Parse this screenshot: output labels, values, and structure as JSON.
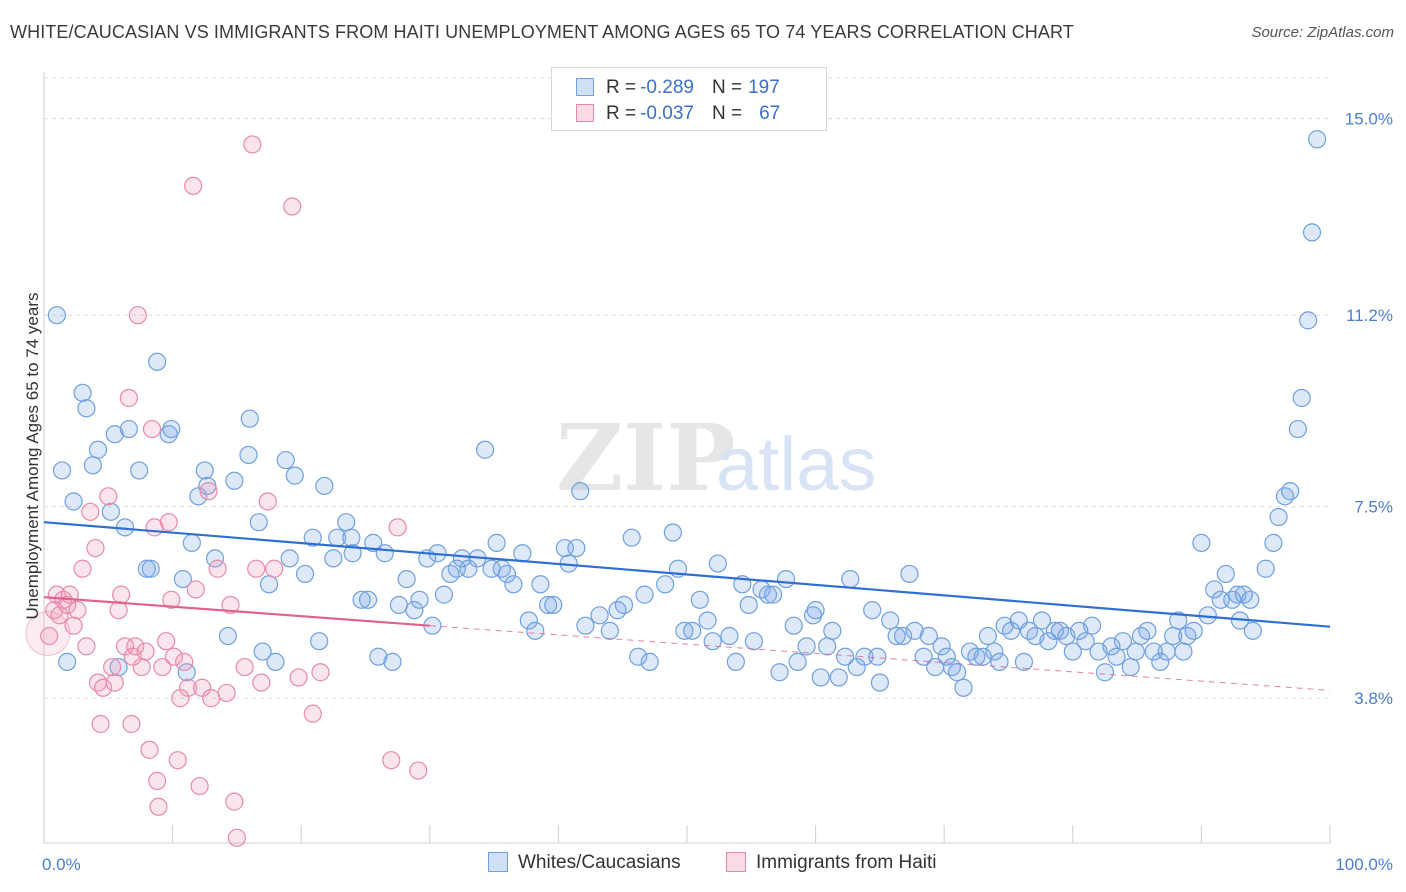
{
  "title": "WHITE/CAUCASIAN VS IMMIGRANTS FROM HAITI UNEMPLOYMENT AMONG AGES 65 TO 74 YEARS CORRELATION CHART",
  "source": "Source: ZipAtlas.com",
  "watermark": {
    "zip": "ZIP",
    "atlas": "atlas"
  },
  "legend": {
    "r_label": "R =",
    "n_label": "N =",
    "series": [
      {
        "r": "-0.289",
        "n": "197"
      },
      {
        "r": "-0.037",
        "n": "67"
      }
    ]
  },
  "bottom_legend": [
    "Whites/Caucasians",
    "Immigrants from Haiti"
  ],
  "chart_data": {
    "type": "scatter",
    "ylabel": "Unemployment Among Ages 65 to 74 years",
    "xlim": [
      0,
      100
    ],
    "ylim": [
      1.0,
      15.9
    ],
    "x_ticks": [
      {
        "v": 0,
        "label": "0.0%"
      },
      {
        "v": 100,
        "label": "100.0%"
      }
    ],
    "y_ticks": [
      {
        "v": 3.8,
        "label": "3.8%"
      },
      {
        "v": 7.5,
        "label": "7.5%"
      },
      {
        "v": 11.2,
        "label": "11.2%"
      },
      {
        "v": 15.0,
        "label": "15.0%"
      }
    ],
    "series": [
      {
        "name": "Whites/Caucasians",
        "color": "#6fa0e0",
        "fill": "rgba(120,165,230,0.25)",
        "trend_color": "#2f6fd1",
        "trend": {
          "x": [
            0,
            100
          ],
          "y": [
            7.2,
            5.18
          ]
        },
        "points": [
          [
            1.0,
            11.2
          ],
          [
            1.4,
            8.2
          ],
          [
            1.8,
            4.5
          ],
          [
            2.3,
            7.6
          ],
          [
            3.0,
            9.7
          ],
          [
            3.3,
            9.4
          ],
          [
            3.8,
            8.3
          ],
          [
            4.2,
            8.6
          ],
          [
            5.2,
            7.4
          ],
          [
            5.5,
            8.9
          ],
          [
            5.8,
            4.4
          ],
          [
            6.3,
            7.1
          ],
          [
            6.6,
            9.0
          ],
          [
            7.4,
            8.2
          ],
          [
            8.0,
            6.3
          ],
          [
            8.3,
            6.3
          ],
          [
            8.8,
            10.3
          ],
          [
            9.7,
            8.9
          ],
          [
            9.9,
            9.0
          ],
          [
            10.8,
            6.1
          ],
          [
            11.1,
            4.3
          ],
          [
            11.5,
            6.8
          ],
          [
            12.0,
            7.7
          ],
          [
            12.5,
            8.2
          ],
          [
            12.7,
            7.9
          ],
          [
            13.3,
            6.5
          ],
          [
            14.3,
            5.0
          ],
          [
            14.8,
            8.0
          ],
          [
            15.9,
            8.5
          ],
          [
            16.0,
            9.2
          ],
          [
            16.7,
            7.2
          ],
          [
            17.0,
            4.7
          ],
          [
            17.5,
            6.0
          ],
          [
            18.0,
            4.5
          ],
          [
            18.8,
            8.4
          ],
          [
            19.1,
            6.5
          ],
          [
            19.5,
            8.1
          ],
          [
            20.3,
            6.2
          ],
          [
            20.9,
            6.9
          ],
          [
            21.4,
            4.9
          ],
          [
            21.8,
            7.9
          ],
          [
            22.5,
            6.5
          ],
          [
            22.8,
            6.9
          ],
          [
            23.5,
            7.2
          ],
          [
            23.9,
            6.9
          ],
          [
            24.0,
            6.6
          ],
          [
            24.7,
            5.7
          ],
          [
            25.2,
            5.7
          ],
          [
            25.6,
            6.8
          ],
          [
            26.0,
            4.6
          ],
          [
            26.5,
            6.6
          ],
          [
            27.1,
            4.5
          ],
          [
            27.6,
            5.6
          ],
          [
            28.2,
            6.1
          ],
          [
            28.8,
            5.5
          ],
          [
            29.2,
            5.7
          ],
          [
            29.8,
            6.5
          ],
          [
            30.2,
            5.2
          ],
          [
            30.6,
            6.6
          ],
          [
            31.1,
            5.8
          ],
          [
            31.6,
            6.2
          ],
          [
            32.1,
            6.3
          ],
          [
            32.5,
            6.5
          ],
          [
            33.0,
            6.3
          ],
          [
            33.7,
            6.5
          ],
          [
            34.3,
            8.6
          ],
          [
            34.8,
            6.3
          ],
          [
            35.2,
            6.8
          ],
          [
            35.6,
            6.3
          ],
          [
            36.0,
            6.2
          ],
          [
            36.5,
            6.0
          ],
          [
            37.2,
            6.6
          ],
          [
            37.7,
            5.3
          ],
          [
            38.2,
            5.1
          ],
          [
            38.6,
            6.0
          ],
          [
            39.2,
            5.6
          ],
          [
            39.6,
            5.6
          ],
          [
            40.5,
            6.7
          ],
          [
            40.8,
            6.4
          ],
          [
            41.4,
            6.7
          ],
          [
            41.7,
            7.8
          ],
          [
            42.1,
            5.2
          ],
          [
            43.2,
            5.4
          ],
          [
            44.0,
            5.1
          ],
          [
            44.6,
            5.5
          ],
          [
            45.1,
            5.6
          ],
          [
            45.7,
            6.9
          ],
          [
            46.2,
            4.6
          ],
          [
            46.7,
            5.8
          ],
          [
            47.1,
            4.5
          ],
          [
            48.3,
            6.0
          ],
          [
            48.9,
            7.0
          ],
          [
            49.3,
            6.3
          ],
          [
            49.8,
            5.1
          ],
          [
            50.4,
            5.1
          ],
          [
            51.0,
            5.7
          ],
          [
            51.6,
            5.3
          ],
          [
            52.0,
            4.9
          ],
          [
            52.4,
            6.4
          ],
          [
            53.3,
            5.0
          ],
          [
            53.8,
            4.5
          ],
          [
            54.3,
            6.0
          ],
          [
            54.8,
            5.6
          ],
          [
            55.2,
            4.9
          ],
          [
            55.8,
            5.9
          ],
          [
            56.3,
            5.8
          ],
          [
            56.7,
            5.8
          ],
          [
            57.2,
            4.3
          ],
          [
            57.7,
            6.1
          ],
          [
            58.3,
            5.2
          ],
          [
            58.6,
            4.5
          ],
          [
            59.3,
            4.8
          ],
          [
            59.8,
            5.4
          ],
          [
            60.4,
            4.2
          ],
          [
            60.9,
            4.8
          ],
          [
            61.3,
            5.1
          ],
          [
            61.8,
            4.2
          ],
          [
            62.3,
            4.6
          ],
          [
            62.7,
            6.1
          ],
          [
            63.2,
            4.4
          ],
          [
            63.8,
            4.6
          ],
          [
            64.4,
            5.5
          ],
          [
            65.0,
            4.1
          ],
          [
            65.8,
            5.3
          ],
          [
            66.3,
            5.0
          ],
          [
            66.8,
            5.0
          ],
          [
            67.3,
            6.2
          ],
          [
            67.7,
            5.1
          ],
          [
            68.4,
            4.6
          ],
          [
            68.8,
            5.0
          ],
          [
            69.3,
            4.4
          ],
          [
            69.8,
            4.8
          ],
          [
            70.2,
            4.6
          ],
          [
            70.6,
            4.4
          ],
          [
            71.0,
            4.3
          ],
          [
            71.5,
            4.0
          ],
          [
            72.0,
            4.7
          ],
          [
            72.5,
            4.6
          ],
          [
            73.0,
            4.6
          ],
          [
            73.4,
            5.0
          ],
          [
            73.9,
            4.7
          ],
          [
            74.3,
            4.5
          ],
          [
            74.7,
            5.2
          ],
          [
            75.2,
            5.1
          ],
          [
            75.8,
            5.3
          ],
          [
            76.2,
            4.5
          ],
          [
            76.6,
            5.1
          ],
          [
            77.1,
            5.0
          ],
          [
            77.6,
            5.3
          ],
          [
            78.1,
            4.9
          ],
          [
            78.6,
            5.1
          ],
          [
            79.0,
            5.1
          ],
          [
            79.5,
            5.0
          ],
          [
            80.0,
            4.7
          ],
          [
            80.5,
            5.1
          ],
          [
            81.0,
            4.9
          ],
          [
            81.5,
            5.2
          ],
          [
            82.0,
            4.7
          ],
          [
            82.5,
            4.3
          ],
          [
            83.0,
            4.8
          ],
          [
            83.4,
            4.6
          ],
          [
            83.9,
            4.9
          ],
          [
            84.5,
            4.4
          ],
          [
            84.9,
            4.7
          ],
          [
            85.3,
            5.0
          ],
          [
            85.8,
            5.1
          ],
          [
            86.3,
            4.7
          ],
          [
            86.8,
            4.5
          ],
          [
            87.3,
            4.7
          ],
          [
            87.8,
            5.0
          ],
          [
            88.2,
            5.3
          ],
          [
            88.6,
            4.7
          ],
          [
            88.9,
            5.0
          ],
          [
            89.4,
            5.1
          ],
          [
            90.0,
            6.8
          ],
          [
            90.5,
            5.4
          ],
          [
            91.0,
            5.9
          ],
          [
            91.5,
            5.7
          ],
          [
            91.9,
            6.2
          ],
          [
            92.4,
            5.7
          ],
          [
            92.8,
            5.8
          ],
          [
            93.3,
            5.8
          ],
          [
            93.8,
            5.7
          ],
          [
            94.0,
            5.1
          ],
          [
            95.0,
            6.3
          ],
          [
            95.6,
            6.8
          ],
          [
            96.0,
            7.3
          ],
          [
            96.5,
            7.7
          ],
          [
            96.9,
            7.8
          ],
          [
            97.5,
            9.0
          ],
          [
            97.8,
            9.6
          ],
          [
            98.3,
            11.1
          ],
          [
            98.6,
            12.8
          ],
          [
            99.0,
            14.6
          ],
          [
            93.0,
            5.3
          ],
          [
            60.0,
            5.5
          ],
          [
            64.8,
            4.6
          ]
        ]
      },
      {
        "name": "Immigrants from Haiti",
        "color": "#e88aa8",
        "fill": "rgba(240,150,180,0.25)",
        "trend_color": "#e0628f",
        "trend": {
          "x": [
            0,
            30
          ],
          "y": [
            5.75,
            5.2
          ]
        },
        "trend_dashed": {
          "x": [
            30,
            100
          ],
          "y": [
            5.2,
            3.95
          ]
        },
        "points": [
          [
            0.4,
            5.0
          ],
          [
            0.8,
            5.5
          ],
          [
            1.0,
            5.8
          ],
          [
            1.2,
            5.4
          ],
          [
            1.5,
            5.7
          ],
          [
            1.8,
            5.6
          ],
          [
            2.0,
            5.8
          ],
          [
            2.3,
            5.2
          ],
          [
            2.6,
            5.5
          ],
          [
            3.0,
            6.3
          ],
          [
            3.3,
            4.8
          ],
          [
            3.6,
            7.4
          ],
          [
            4.0,
            6.7
          ],
          [
            4.2,
            4.1
          ],
          [
            4.4,
            3.3
          ],
          [
            4.6,
            4.0
          ],
          [
            5.0,
            7.7
          ],
          [
            5.3,
            4.4
          ],
          [
            5.5,
            4.1
          ],
          [
            5.8,
            5.5
          ],
          [
            6.0,
            5.8
          ],
          [
            6.3,
            4.8
          ],
          [
            6.6,
            9.6
          ],
          [
            6.8,
            3.3
          ],
          [
            6.9,
            4.6
          ],
          [
            7.1,
            4.8
          ],
          [
            7.3,
            11.2
          ],
          [
            7.6,
            4.4
          ],
          [
            7.9,
            4.7
          ],
          [
            8.2,
            2.8
          ],
          [
            8.4,
            9.0
          ],
          [
            8.6,
            7.1
          ],
          [
            8.8,
            2.2
          ],
          [
            8.9,
            1.7
          ],
          [
            9.2,
            4.4
          ],
          [
            9.5,
            4.9
          ],
          [
            9.7,
            7.2
          ],
          [
            9.9,
            5.7
          ],
          [
            10.1,
            4.6
          ],
          [
            10.4,
            2.6
          ],
          [
            10.6,
            3.8
          ],
          [
            10.9,
            4.5
          ],
          [
            11.2,
            4.0
          ],
          [
            11.6,
            13.7
          ],
          [
            11.8,
            5.9
          ],
          [
            12.1,
            2.1
          ],
          [
            12.3,
            4.0
          ],
          [
            12.8,
            7.8
          ],
          [
            13.0,
            3.8
          ],
          [
            13.5,
            6.3
          ],
          [
            14.2,
            3.9
          ],
          [
            14.5,
            5.6
          ],
          [
            14.8,
            1.8
          ],
          [
            15.0,
            1.1
          ],
          [
            15.6,
            4.4
          ],
          [
            16.2,
            14.5
          ],
          [
            16.5,
            6.3
          ],
          [
            16.9,
            4.1
          ],
          [
            17.4,
            7.6
          ],
          [
            17.9,
            6.3
          ],
          [
            19.3,
            13.3
          ],
          [
            19.8,
            4.2
          ],
          [
            20.9,
            3.5
          ],
          [
            21.5,
            4.3
          ],
          [
            27.0,
            2.6
          ],
          [
            27.5,
            7.1
          ],
          [
            29.1,
            2.4
          ]
        ]
      }
    ]
  }
}
